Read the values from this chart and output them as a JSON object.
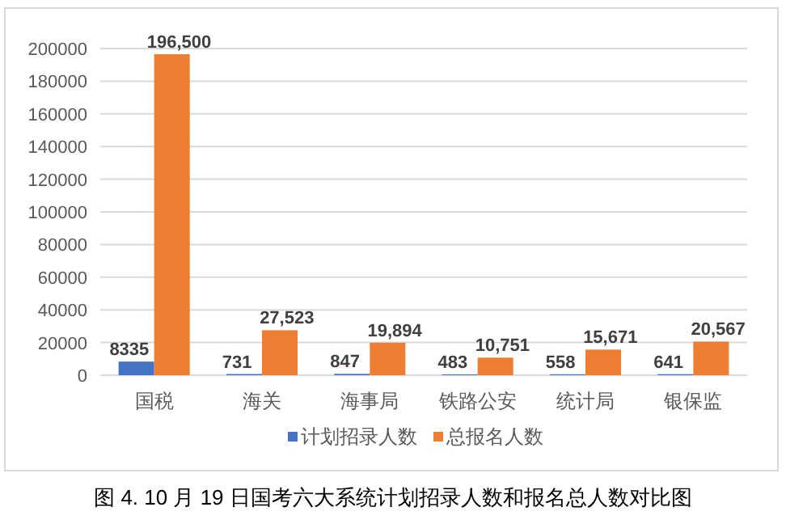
{
  "chart_data": {
    "type": "bar",
    "categories": [
      "国税",
      "海关",
      "海事局",
      "铁路公安",
      "统计局",
      "银保监"
    ],
    "series": [
      {
        "name": "计划招录人数",
        "color": "#4472c4",
        "values": [
          8335,
          731,
          847,
          483,
          558,
          641
        ],
        "value_labels": [
          "8335",
          "731",
          "847",
          "483",
          "558",
          "641"
        ]
      },
      {
        "name": "总报名人数",
        "color": "#ed7d31",
        "values": [
          196500,
          27523,
          19894,
          10751,
          15671,
          20567
        ],
        "value_labels": [
          "196,500",
          "27,523",
          "19,894",
          "10,751",
          "15,671",
          "20,567"
        ]
      }
    ],
    "ylim": [
      0,
      200000
    ],
    "yticks": [
      0,
      20000,
      40000,
      60000,
      80000,
      100000,
      120000,
      140000,
      160000,
      180000,
      200000
    ],
    "grid": "y",
    "legend": "bottom",
    "annotations": [
      "图 4. 10 月 19 日国考六大系统计划招录人数和报名总人数对比图"
    ]
  }
}
